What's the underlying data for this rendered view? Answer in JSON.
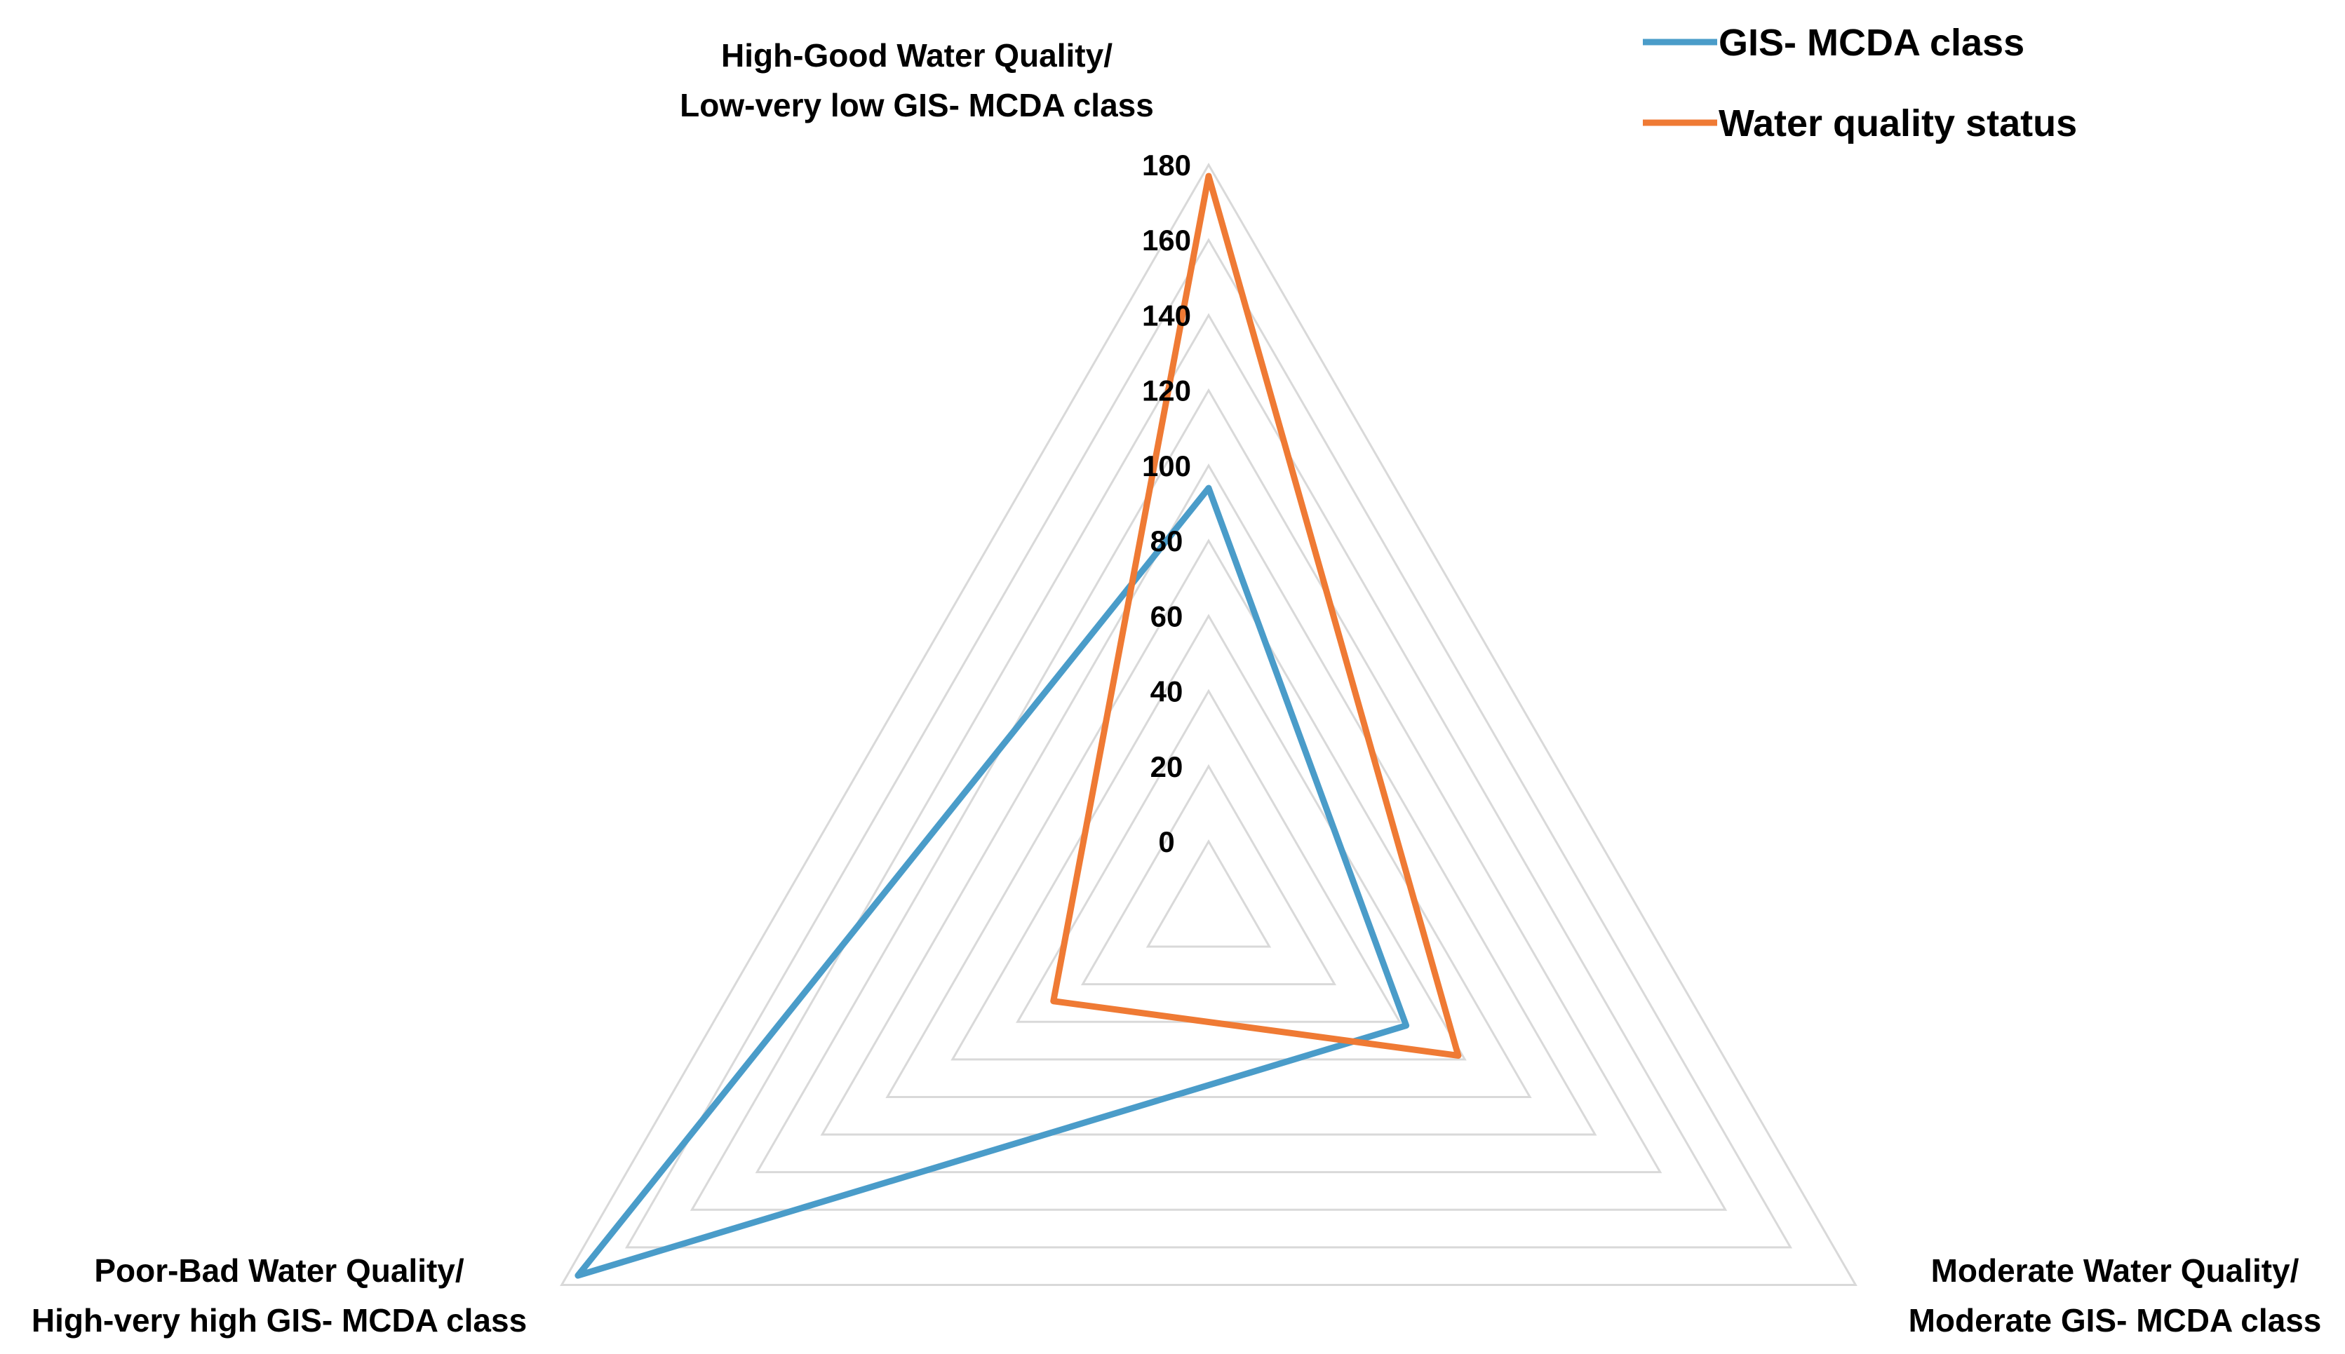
{
  "chart_data": {
    "type": "radar",
    "categories": [
      [
        "High-Good Water Quality/",
        "Low-very low GIS- MCDA class"
      ],
      [
        "Moderate Water Quality/",
        "Moderate GIS- MCDA class"
      ],
      [
        "Poor-Bad Water Quality/",
        "High-very high GIS- MCDA class"
      ]
    ],
    "ticks": [
      "0",
      "20",
      "40",
      "60",
      "80",
      "100",
      "120",
      "140",
      "160",
      "180"
    ],
    "rmin": 0,
    "rmax": 180,
    "grid": true,
    "legend_position": "top-right",
    "series": [
      {
        "name": "GIS- MCDA class",
        "color": "#4a9cc9",
        "values": [
          94,
          42,
          175
        ]
      },
      {
        "name": "Water quality status",
        "color": "#ef7a34",
        "values": [
          177,
          58,
          29
        ]
      }
    ]
  }
}
